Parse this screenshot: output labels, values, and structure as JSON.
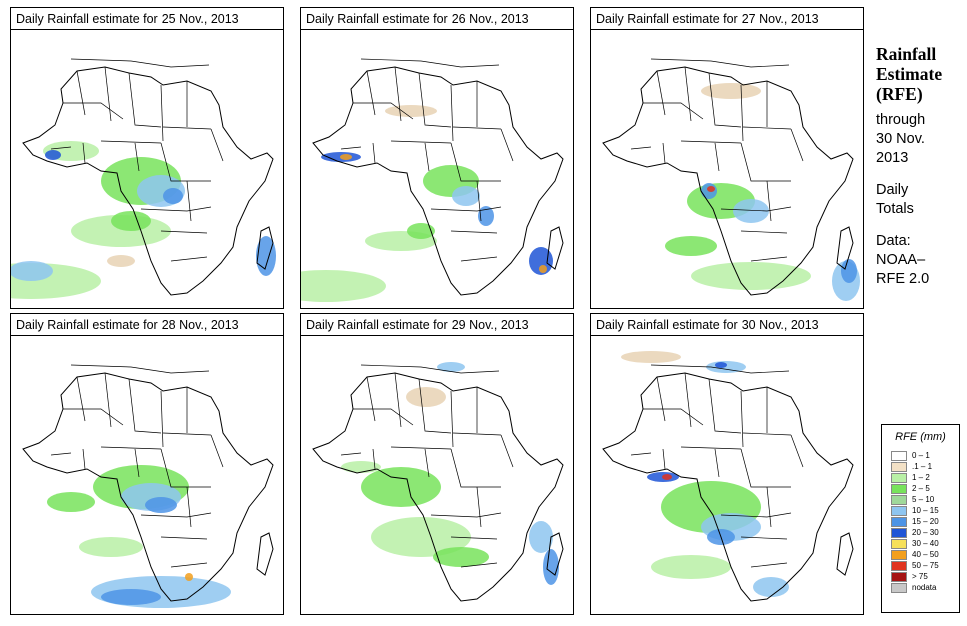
{
  "panels": [
    {
      "title_prefix": "Daily Rainfall estimate for",
      "date": "25 Nov., 2013"
    },
    {
      "title_prefix": "Daily Rainfall estimate for",
      "date": "26 Nov., 2013"
    },
    {
      "title_prefix": "Daily Rainfall estimate for",
      "date": "27 Nov., 2013"
    },
    {
      "title_prefix": "Daily Rainfall estimate for",
      "date": "28 Nov., 2013"
    },
    {
      "title_prefix": "Daily Rainfall estimate for",
      "date": "29 Nov., 2013"
    },
    {
      "title_prefix": "Daily Rainfall estimate for",
      "date": "30 Nov., 2013"
    }
  ],
  "side_panel": {
    "heading_line1": "Rainfall",
    "heading_line2": "Estimate",
    "heading_line3": "(RFE)",
    "through_label": "through",
    "through_date_line1": "30 Nov.",
    "through_date_line2": "2013",
    "totals_line1": "Daily",
    "totals_line2": "Totals",
    "data_label": "Data:",
    "data_source_line1": "NOAA–",
    "data_source_line2": "RFE 2.0"
  },
  "legend": {
    "title": "RFE (mm)",
    "items": [
      {
        "label": "0 – 1",
        "color": "#ffffff"
      },
      {
        "label": ".1 – 1",
        "color": "#f3e1c6"
      },
      {
        "label": "1 – 2",
        "color": "#b9f0a6"
      },
      {
        "label": "2 – 5",
        "color": "#78e35c"
      },
      {
        "label": "5 – 10",
        "color": "#9fd89a"
      },
      {
        "label": "10 – 15",
        "color": "#8ec5f0"
      },
      {
        "label": "15 – 20",
        "color": "#4d94e6"
      },
      {
        "label": "20 – 30",
        "color": "#1f55d6"
      },
      {
        "label": "30 – 40",
        "color": "#f6e05a"
      },
      {
        "label": "40 – 50",
        "color": "#f29f1d"
      },
      {
        "label": "50 – 75",
        "color": "#e0331f"
      },
      {
        "label": "> 75",
        "color": "#a51414"
      },
      {
        "label": "nodata",
        "color": "#c8c8c8"
      }
    ]
  },
  "map_colors": {
    "light": "#b9f0a6",
    "green": "#78e35c",
    "lightblue": "#8ec5f0",
    "blue": "#4d94e6",
    "darkblue": "#1f55d6",
    "tan": "#e8d2b4",
    "yellow": "#f6e05a",
    "orange": "#f29f1d",
    "red": "#e0331f"
  }
}
